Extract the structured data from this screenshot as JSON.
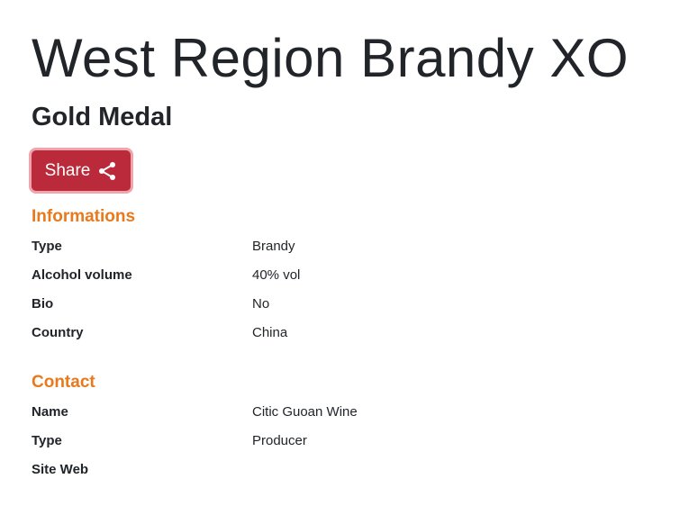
{
  "title": "West Region Brandy XO",
  "award": "Gold Medal",
  "share_label": "Share",
  "colors": {
    "accent": "#e8791c",
    "button": "#bb2a3a"
  },
  "informations": {
    "heading": "Informations",
    "rows": [
      {
        "k": "Type",
        "v": "Brandy"
      },
      {
        "k": "Alcohol volume",
        "v": "40% vol"
      },
      {
        "k": "Bio",
        "v": "No"
      },
      {
        "k": "Country",
        "v": "China"
      }
    ]
  },
  "contact": {
    "heading": "Contact",
    "rows": [
      {
        "k": "Name",
        "v": "Citic Guoan Wine"
      },
      {
        "k": "Type",
        "v": "Producer"
      },
      {
        "k": "Site Web",
        "v": ""
      }
    ]
  }
}
